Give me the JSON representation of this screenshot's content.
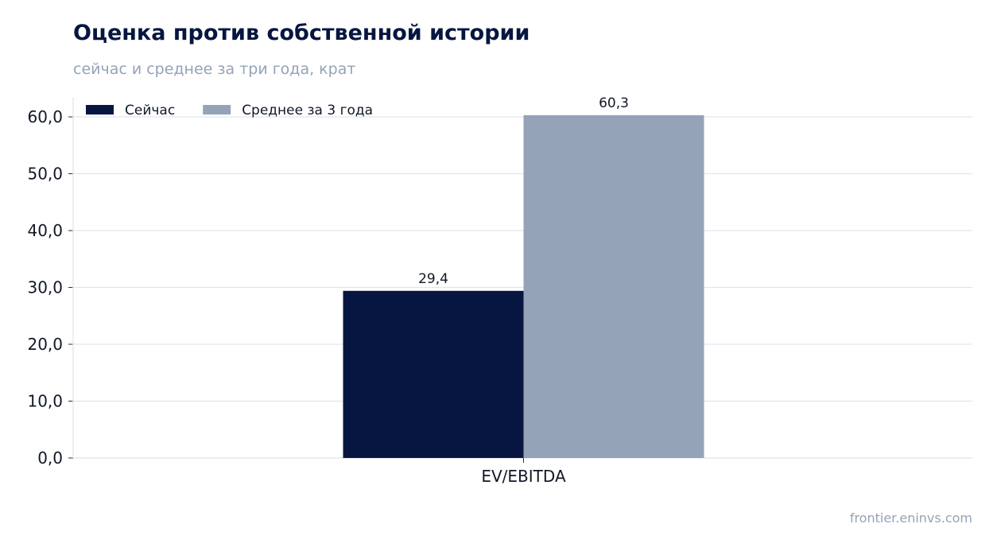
{
  "header": {
    "title": "Оценка против собственной истории",
    "subtitle": "сейчас и среднее за три года, крат"
  },
  "footer": {
    "source": "frontier.eninvs.com"
  },
  "chart_data": {
    "type": "bar",
    "title": "Оценка против собственной истории",
    "subtitle": "сейчас и среднее за три года, крат",
    "categories": [
      "EV/EBITDA"
    ],
    "series": [
      {
        "name": "Сейчас",
        "values": [
          29.4
        ],
        "labels": [
          "29,4"
        ],
        "color": "#061640"
      },
      {
        "name": "Среднее за 3 года",
        "values": [
          60.3
        ],
        "labels": [
          "60,3"
        ],
        "color": "#94A3B8"
      }
    ],
    "ylim": [
      0,
      60
    ],
    "yticks": [
      0,
      10,
      20,
      30,
      40,
      50,
      60
    ],
    "ytick_labels": [
      "0,0",
      "10,0",
      "20,0",
      "30,0",
      "40,0",
      "50,0",
      "60,0"
    ],
    "xlabel": "",
    "ylabel": "",
    "grid": true,
    "legend": "top-left"
  }
}
